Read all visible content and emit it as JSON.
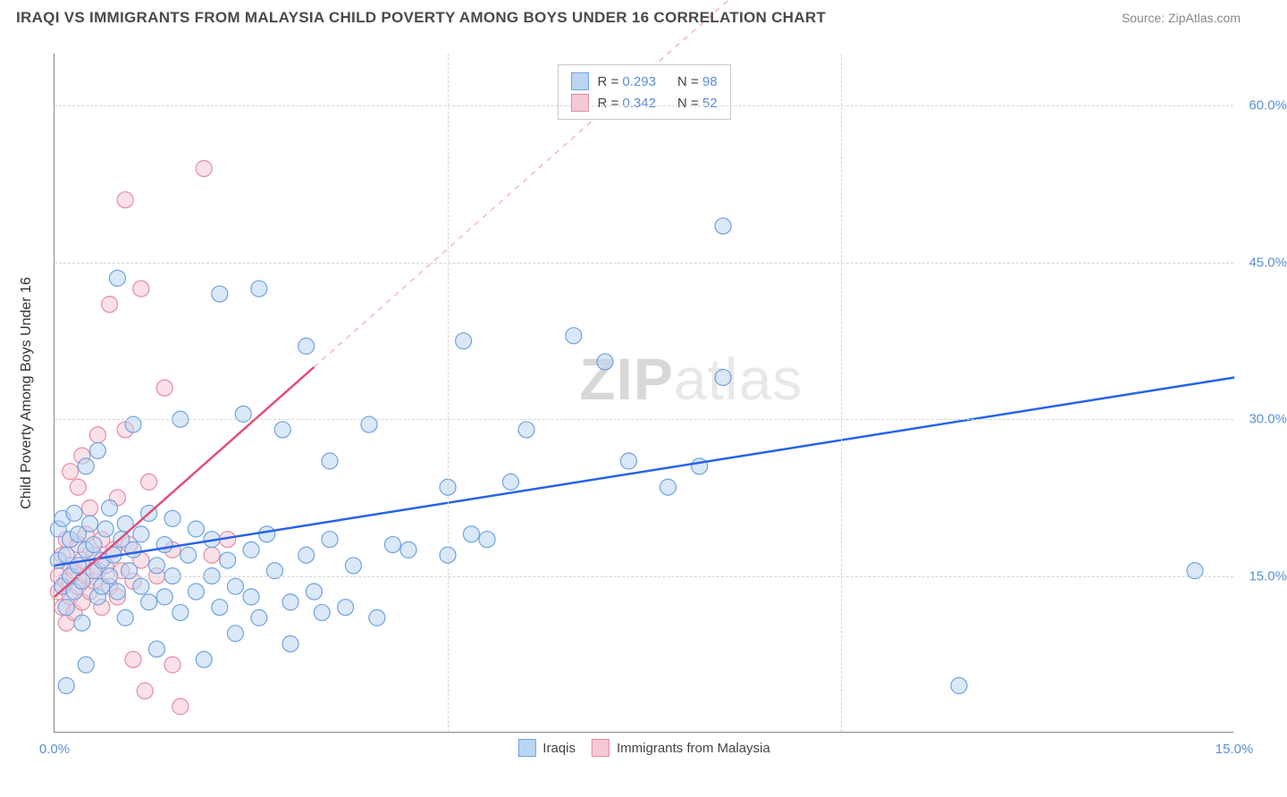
{
  "header": {
    "title": "IRAQI VS IMMIGRANTS FROM MALAYSIA CHILD POVERTY AMONG BOYS UNDER 16 CORRELATION CHART",
    "source": "Source: ZipAtlas.com"
  },
  "axes": {
    "y_label": "Child Poverty Among Boys Under 16",
    "x_min": 0.0,
    "x_max": 15.0,
    "y_min": 0.0,
    "y_max": 65.0,
    "x_ticks": [
      {
        "v": 0.0,
        "l": "0.0%"
      },
      {
        "v": 15.0,
        "l": "15.0%"
      }
    ],
    "y_ticks": [
      {
        "v": 15.0,
        "l": "15.0%"
      },
      {
        "v": 30.0,
        "l": "30.0%"
      },
      {
        "v": 45.0,
        "l": "45.0%"
      },
      {
        "v": 60.0,
        "l": "60.0%"
      }
    ],
    "v_gridlines": [
      5.0,
      10.0
    ],
    "grid_color": "#d5d5d5",
    "axis_color": "#888888"
  },
  "watermark": {
    "bold": "ZIP",
    "rest": "atlas"
  },
  "legend_top": [
    {
      "swatch_fill": "#bcd6f2",
      "swatch_stroke": "#6ea3e0",
      "r_label": "R =",
      "r_val": "0.293",
      "n_label": "N =",
      "n_val": "98"
    },
    {
      "swatch_fill": "#f5c9d3",
      "swatch_stroke": "#e68aa4",
      "r_label": "R =",
      "r_val": "0.342",
      "n_label": "N =",
      "n_val": "52"
    }
  ],
  "legend_bottom": [
    {
      "swatch_fill": "#bcd6f2",
      "swatch_stroke": "#6ea3e0",
      "label": "Iraqis"
    },
    {
      "swatch_fill": "#f5c9d3",
      "swatch_stroke": "#e68aa4",
      "label": "Immigrants from Malaysia"
    }
  ],
  "series": {
    "iraqis": {
      "color_fill": "#bcd6f2",
      "color_stroke": "#6ea3e0",
      "marker_r": 9,
      "marker_opacity": 0.55,
      "trend": {
        "color": "#2563eb",
        "width": 2.5,
        "x1": 0.0,
        "y1": 16.0,
        "x2": 15.0,
        "y2": 34.0,
        "dash_extend": false
      },
      "points": [
        [
          0.05,
          19.5
        ],
        [
          0.05,
          16.5
        ],
        [
          0.1,
          14.0
        ],
        [
          0.1,
          20.5
        ],
        [
          0.15,
          17.0
        ],
        [
          0.15,
          12.0
        ],
        [
          0.15,
          4.5
        ],
        [
          0.2,
          18.5
        ],
        [
          0.2,
          15.0
        ],
        [
          0.25,
          21.0
        ],
        [
          0.25,
          13.5
        ],
        [
          0.3,
          19.0
        ],
        [
          0.3,
          16.0
        ],
        [
          0.35,
          14.5
        ],
        [
          0.35,
          10.5
        ],
        [
          0.4,
          17.5
        ],
        [
          0.4,
          25.5
        ],
        [
          0.45,
          20.0
        ],
        [
          0.5,
          15.5
        ],
        [
          0.5,
          18.0
        ],
        [
          0.55,
          13.0
        ],
        [
          0.55,
          27.0
        ],
        [
          0.6,
          16.5
        ],
        [
          0.6,
          14.0
        ],
        [
          0.65,
          19.5
        ],
        [
          0.7,
          15.0
        ],
        [
          0.7,
          21.5
        ],
        [
          0.75,
          17.0
        ],
        [
          0.8,
          13.5
        ],
        [
          0.8,
          43.5
        ],
        [
          0.85,
          18.5
        ],
        [
          0.9,
          11.0
        ],
        [
          0.9,
          20.0
        ],
        [
          0.95,
          15.5
        ],
        [
          1.0,
          17.5
        ],
        [
          1.0,
          29.5
        ],
        [
          1.1,
          14.0
        ],
        [
          1.1,
          19.0
        ],
        [
          1.2,
          12.5
        ],
        [
          1.2,
          21.0
        ],
        [
          1.3,
          16.0
        ],
        [
          1.3,
          8.0
        ],
        [
          1.4,
          18.0
        ],
        [
          1.4,
          13.0
        ],
        [
          1.5,
          20.5
        ],
        [
          1.5,
          15.0
        ],
        [
          1.6,
          11.5
        ],
        [
          1.6,
          30.0
        ],
        [
          1.7,
          17.0
        ],
        [
          1.8,
          13.5
        ],
        [
          1.8,
          19.5
        ],
        [
          1.9,
          7.0
        ],
        [
          2.0,
          15.0
        ],
        [
          2.0,
          18.5
        ],
        [
          2.1,
          12.0
        ],
        [
          2.1,
          42.0
        ],
        [
          2.2,
          16.5
        ],
        [
          2.3,
          14.0
        ],
        [
          2.3,
          9.5
        ],
        [
          2.4,
          30.5
        ],
        [
          2.5,
          13.0
        ],
        [
          2.5,
          17.5
        ],
        [
          2.6,
          11.0
        ],
        [
          2.6,
          42.5
        ],
        [
          2.7,
          19.0
        ],
        [
          2.8,
          15.5
        ],
        [
          2.9,
          29.0
        ],
        [
          3.0,
          12.5
        ],
        [
          3.0,
          8.5
        ],
        [
          3.2,
          17.0
        ],
        [
          3.2,
          37.0
        ],
        [
          3.3,
          13.5
        ],
        [
          3.4,
          11.5
        ],
        [
          3.5,
          26.0
        ],
        [
          3.5,
          18.5
        ],
        [
          3.7,
          12.0
        ],
        [
          3.8,
          16.0
        ],
        [
          4.0,
          29.5
        ],
        [
          4.1,
          11.0
        ],
        [
          4.3,
          18.0
        ],
        [
          4.5,
          17.5
        ],
        [
          5.0,
          23.5
        ],
        [
          5.0,
          17.0
        ],
        [
          5.2,
          37.5
        ],
        [
          5.3,
          19.0
        ],
        [
          5.5,
          18.5
        ],
        [
          5.8,
          24.0
        ],
        [
          6.0,
          29.0
        ],
        [
          6.6,
          38.0
        ],
        [
          7.0,
          35.5
        ],
        [
          7.3,
          26.0
        ],
        [
          7.8,
          23.5
        ],
        [
          8.2,
          25.5
        ],
        [
          8.5,
          34.0
        ],
        [
          8.5,
          48.5
        ],
        [
          11.5,
          4.5
        ],
        [
          14.5,
          15.5
        ],
        [
          0.4,
          6.5
        ]
      ]
    },
    "malaysia": {
      "color_fill": "#f5c9d3",
      "color_stroke": "#e68aa4",
      "marker_r": 9,
      "marker_opacity": 0.55,
      "trend": {
        "color": "#e04f7a",
        "width": 2.5,
        "x1": 0.0,
        "y1": 13.0,
        "x2": 3.3,
        "y2": 35.0,
        "dash_extend": true,
        "dash_x2": 9.0,
        "dash_y2": 73.0
      },
      "points": [
        [
          0.05,
          13.5
        ],
        [
          0.05,
          15.0
        ],
        [
          0.1,
          12.0
        ],
        [
          0.1,
          17.0
        ],
        [
          0.15,
          14.5
        ],
        [
          0.15,
          18.5
        ],
        [
          0.15,
          10.5
        ],
        [
          0.2,
          16.0
        ],
        [
          0.2,
          13.0
        ],
        [
          0.2,
          25.0
        ],
        [
          0.25,
          15.5
        ],
        [
          0.25,
          11.5
        ],
        [
          0.3,
          18.0
        ],
        [
          0.3,
          14.0
        ],
        [
          0.3,
          23.5
        ],
        [
          0.35,
          16.5
        ],
        [
          0.35,
          12.5
        ],
        [
          0.35,
          26.5
        ],
        [
          0.4,
          15.0
        ],
        [
          0.4,
          19.0
        ],
        [
          0.45,
          13.5
        ],
        [
          0.45,
          21.5
        ],
        [
          0.5,
          17.0
        ],
        [
          0.5,
          14.5
        ],
        [
          0.55,
          15.5
        ],
        [
          0.55,
          28.5
        ],
        [
          0.6,
          12.0
        ],
        [
          0.6,
          18.5
        ],
        [
          0.65,
          16.0
        ],
        [
          0.7,
          41.0
        ],
        [
          0.7,
          14.0
        ],
        [
          0.75,
          17.5
        ],
        [
          0.8,
          13.0
        ],
        [
          0.8,
          22.5
        ],
        [
          0.85,
          15.5
        ],
        [
          0.9,
          51.0
        ],
        [
          0.9,
          29.0
        ],
        [
          0.95,
          18.0
        ],
        [
          1.0,
          14.5
        ],
        [
          1.0,
          7.0
        ],
        [
          1.1,
          16.5
        ],
        [
          1.1,
          42.5
        ],
        [
          1.15,
          4.0
        ],
        [
          1.2,
          24.0
        ],
        [
          1.3,
          15.0
        ],
        [
          1.4,
          33.0
        ],
        [
          1.5,
          17.5
        ],
        [
          1.5,
          6.5
        ],
        [
          1.6,
          2.5
        ],
        [
          1.9,
          54.0
        ],
        [
          2.0,
          17.0
        ],
        [
          2.2,
          18.5
        ]
      ]
    }
  },
  "styling": {
    "background": "#ffffff",
    "title_color": "#4a4a4a",
    "title_fontsize": 17,
    "source_color": "#888888",
    "tick_color": "#5a8fd6",
    "label_color": "#333333"
  }
}
